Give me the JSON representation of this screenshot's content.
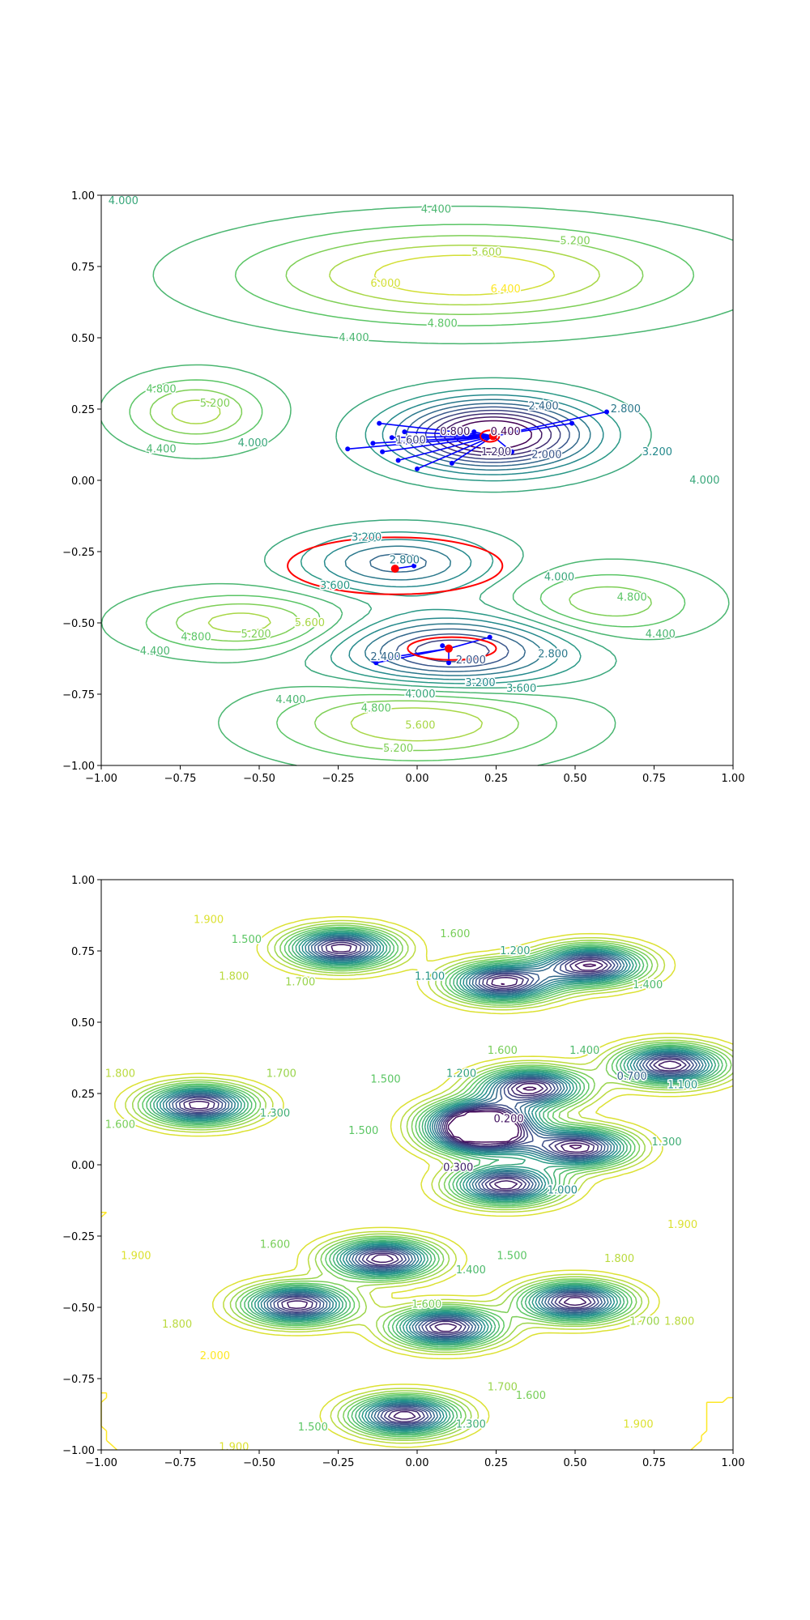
{
  "chart_data": [
    {
      "type": "contour",
      "panel": "top",
      "xlim": [
        -1,
        1
      ],
      "ylim": [
        -1,
        1
      ],
      "x_ticks": [
        "−1.00",
        "−0.75",
        "−0.50",
        "−0.25",
        "0.00",
        "0.25",
        "0.50",
        "0.75",
        "1.00"
      ],
      "y_ticks": [
        "−1.00",
        "−0.75",
        "−0.50",
        "−0.25",
        "0.00",
        "0.25",
        "0.50",
        "0.75",
        "1.00"
      ],
      "title": "",
      "xlabel": "",
      "ylabel": "",
      "grid": false,
      "colormap": "viridis",
      "contour_levels": [
        0.4,
        0.8,
        1.2,
        1.6,
        2.0,
        2.4,
        2.8,
        3.2,
        3.6,
        4.0,
        4.4,
        4.8,
        5.2,
        5.6,
        6.0,
        6.4
      ],
      "contour_labels": [
        {
          "text": "4.000",
          "x": -0.93,
          "y": 0.98
        },
        {
          "text": "4.400",
          "x": 0.06,
          "y": 0.95
        },
        {
          "text": "5.200",
          "x": 0.5,
          "y": 0.84
        },
        {
          "text": "5.600",
          "x": 0.22,
          "y": 0.8
        },
        {
          "text": "6.000",
          "x": -0.1,
          "y": 0.69
        },
        {
          "text": "6.400",
          "x": 0.28,
          "y": 0.67
        },
        {
          "text": "4.800",
          "x": 0.08,
          "y": 0.55
        },
        {
          "text": "4.400",
          "x": -0.2,
          "y": 0.5
        },
        {
          "text": "4.800",
          "x": -0.81,
          "y": 0.32
        },
        {
          "text": "5.200",
          "x": -0.64,
          "y": 0.27
        },
        {
          "text": "4.400",
          "x": -0.81,
          "y": 0.11
        },
        {
          "text": "4.000",
          "x": -0.52,
          "y": 0.13
        },
        {
          "text": "2.400",
          "x": 0.4,
          "y": 0.26
        },
        {
          "text": "2.800",
          "x": 0.66,
          "y": 0.25
        },
        {
          "text": "0.400",
          "x": 0.28,
          "y": 0.17
        },
        {
          "text": "0.800",
          "x": 0.12,
          "y": 0.17
        },
        {
          "text": "1.200",
          "x": 0.25,
          "y": 0.1
        },
        {
          "text": "1.600",
          "x": -0.02,
          "y": 0.14
        },
        {
          "text": "2.000",
          "x": 0.41,
          "y": 0.09
        },
        {
          "text": "3.200",
          "x": 0.76,
          "y": 0.1
        },
        {
          "text": "4.000",
          "x": 0.91,
          "y": 0.0
        },
        {
          "text": "3.200",
          "x": -0.16,
          "y": -0.2
        },
        {
          "text": "2.800",
          "x": -0.04,
          "y": -0.28
        },
        {
          "text": "3.600",
          "x": -0.26,
          "y": -0.37
        },
        {
          "text": "4.000",
          "x": 0.45,
          "y": -0.34
        },
        {
          "text": "4.800",
          "x": 0.68,
          "y": -0.41
        },
        {
          "text": "4.400",
          "x": 0.77,
          "y": -0.54
        },
        {
          "text": "5.600",
          "x": -0.34,
          "y": -0.5
        },
        {
          "text": "5.200",
          "x": -0.51,
          "y": -0.54
        },
        {
          "text": "4.800",
          "x": -0.7,
          "y": -0.55
        },
        {
          "text": "4.400",
          "x": -0.83,
          "y": -0.6
        },
        {
          "text": "2.400",
          "x": -0.1,
          "y": -0.62
        },
        {
          "text": "2.000",
          "x": 0.17,
          "y": -0.63
        },
        {
          "text": "2.800",
          "x": 0.43,
          "y": -0.61
        },
        {
          "text": "3.200",
          "x": 0.2,
          "y": -0.71
        },
        {
          "text": "3.600",
          "x": 0.33,
          "y": -0.73
        },
        {
          "text": "4.000",
          "x": 0.01,
          "y": -0.75
        },
        {
          "text": "4.400",
          "x": -0.4,
          "y": -0.77
        },
        {
          "text": "4.800",
          "x": -0.13,
          "y": -0.8
        },
        {
          "text": "5.600",
          "x": 0.01,
          "y": -0.86
        },
        {
          "text": "5.200",
          "x": -0.06,
          "y": -0.94
        }
      ],
      "overlay": {
        "red_circles": [
          {
            "cx": 0.23,
            "cy": 0.155,
            "rx": 0.03,
            "ry": 0.02
          },
          {
            "cx": -0.07,
            "cy": -0.3,
            "rx": 0.34,
            "ry": 0.1
          },
          {
            "cx": 0.11,
            "cy": -0.59,
            "rx": 0.14,
            "ry": 0.04
          }
        ],
        "red_points": [
          {
            "x": 0.24,
            "y": 0.155
          },
          {
            "x": -0.07,
            "y": -0.31
          },
          {
            "x": 0.1,
            "y": -0.59
          }
        ],
        "blue_paths": [
          [
            [
              -0.12,
              0.2
            ],
            [
              0.24,
              0.155
            ]
          ],
          [
            [
              -0.14,
              0.13
            ],
            [
              0.24,
              0.155
            ]
          ],
          [
            [
              -0.22,
              0.11
            ],
            [
              0.24,
              0.155
            ]
          ],
          [
            [
              -0.11,
              0.1
            ],
            [
              0.24,
              0.155
            ]
          ],
          [
            [
              -0.06,
              0.07
            ],
            [
              0.24,
              0.155
            ]
          ],
          [
            [
              0.0,
              0.04
            ],
            [
              0.24,
              0.155
            ]
          ],
          [
            [
              0.11,
              0.06
            ],
            [
              0.24,
              0.155
            ]
          ],
          [
            [
              0.3,
              0.1
            ],
            [
              0.24,
              0.155
            ]
          ],
          [
            [
              0.49,
              0.2
            ],
            [
              0.24,
              0.155
            ]
          ],
          [
            [
              0.6,
              0.24
            ],
            [
              0.24,
              0.155
            ]
          ],
          [
            [
              0.18,
              0.17
            ],
            [
              0.24,
              0.155
            ]
          ],
          [
            [
              0.08,
              0.16
            ],
            [
              0.24,
              0.155
            ]
          ],
          [
            [
              -0.08,
              0.15
            ],
            [
              0.24,
              0.155
            ]
          ],
          [
            [
              -0.04,
              0.17
            ],
            [
              0.24,
              0.155
            ]
          ],
          [
            [
              -0.01,
              -0.3
            ],
            [
              -0.07,
              -0.31
            ]
          ],
          [
            [
              -0.14,
              -0.63
            ],
            [
              0.1,
              -0.59
            ]
          ],
          [
            [
              -0.13,
              -0.64
            ],
            [
              0.1,
              -0.59
            ]
          ],
          [
            [
              0.23,
              -0.55
            ],
            [
              0.1,
              -0.59
            ]
          ],
          [
            [
              0.08,
              -0.58
            ],
            [
              0.1,
              -0.59
            ]
          ],
          [
            [
              0.1,
              -0.64
            ],
            [
              0.1,
              -0.59
            ]
          ]
        ]
      }
    },
    {
      "type": "contour",
      "panel": "bottom",
      "xlim": [
        -1,
        1
      ],
      "ylim": [
        -1,
        1
      ],
      "x_ticks": [
        "−1.00",
        "−0.75",
        "−0.50",
        "−0.25",
        "0.00",
        "0.25",
        "0.50",
        "0.75",
        "1.00"
      ],
      "y_ticks": [
        "−1.00",
        "−0.75",
        "−0.50",
        "−0.25",
        "0.00",
        "0.25",
        "0.50",
        "0.75",
        "1.00"
      ],
      "title": "",
      "xlabel": "",
      "ylabel": "",
      "grid": false,
      "colormap": "viridis",
      "contour_levels": [
        0.1,
        0.2,
        0.3,
        0.4,
        0.5,
        0.6,
        0.7,
        0.8,
        0.9,
        1.0,
        1.1,
        1.2,
        1.3,
        1.4,
        1.5,
        1.6,
        1.7,
        1.8,
        1.9,
        2.0
      ],
      "contour_labels": [
        {
          "text": "1.900",
          "x": -0.66,
          "y": 0.86
        },
        {
          "text": "1.500",
          "x": -0.54,
          "y": 0.79
        },
        {
          "text": "1.600",
          "x": 0.12,
          "y": 0.81
        },
        {
          "text": "1.200",
          "x": 0.31,
          "y": 0.75
        },
        {
          "text": "1.400",
          "x": 0.73,
          "y": 0.63
        },
        {
          "text": "1.800",
          "x": -0.58,
          "y": 0.66
        },
        {
          "text": "1.700",
          "x": -0.37,
          "y": 0.64
        },
        {
          "text": "1.100",
          "x": 0.04,
          "y": 0.66
        },
        {
          "text": "1.600",
          "x": 0.27,
          "y": 0.4
        },
        {
          "text": "1.400",
          "x": 0.53,
          "y": 0.4
        },
        {
          "text": "1.800",
          "x": -0.94,
          "y": 0.32
        },
        {
          "text": "1.700",
          "x": -0.43,
          "y": 0.32
        },
        {
          "text": "1.500",
          "x": -0.1,
          "y": 0.3
        },
        {
          "text": "1.200",
          "x": 0.14,
          "y": 0.32
        },
        {
          "text": "1.100",
          "x": 0.84,
          "y": 0.28
        },
        {
          "text": "0.700",
          "x": 0.68,
          "y": 0.31
        },
        {
          "text": "1.300",
          "x": -0.45,
          "y": 0.18
        },
        {
          "text": "1.600",
          "x": -0.94,
          "y": 0.14
        },
        {
          "text": "1.500",
          "x": -0.17,
          "y": 0.12
        },
        {
          "text": "0.200",
          "x": 0.29,
          "y": 0.16
        },
        {
          "text": "0.300",
          "x": 0.13,
          "y": -0.01
        },
        {
          "text": "1.300",
          "x": 0.79,
          "y": 0.08
        },
        {
          "text": "1.000",
          "x": 0.46,
          "y": -0.09
        },
        {
          "text": "1.900",
          "x": 0.84,
          "y": -0.21
        },
        {
          "text": "1.900",
          "x": -0.89,
          "y": -0.32
        },
        {
          "text": "1.600",
          "x": -0.45,
          "y": -0.28
        },
        {
          "text": "1.500",
          "x": 0.3,
          "y": -0.32
        },
        {
          "text": "1.400",
          "x": 0.17,
          "y": -0.37
        },
        {
          "text": "1.800",
          "x": 0.64,
          "y": -0.33
        },
        {
          "text": "1.600",
          "x": 0.03,
          "y": -0.49
        },
        {
          "text": "1.800",
          "x": -0.76,
          "y": -0.56
        },
        {
          "text": "1.700",
          "x": 0.72,
          "y": -0.55
        },
        {
          "text": "1.800",
          "x": 0.83,
          "y": -0.55
        },
        {
          "text": "2.000",
          "x": -0.64,
          "y": -0.67
        },
        {
          "text": "1.700",
          "x": 0.27,
          "y": -0.78
        },
        {
          "text": "1.600",
          "x": 0.36,
          "y": -0.81
        },
        {
          "text": "1.500",
          "x": -0.33,
          "y": -0.92
        },
        {
          "text": "1.300",
          "x": 0.17,
          "y": -0.91
        },
        {
          "text": "1.900",
          "x": -0.58,
          "y": -0.99
        },
        {
          "text": "1.900",
          "x": 0.7,
          "y": -0.91
        }
      ],
      "minima": [
        {
          "x": -0.24,
          "y": 0.76
        },
        {
          "x": 0.27,
          "y": 0.64
        },
        {
          "x": 0.55,
          "y": 0.7
        },
        {
          "x": -0.69,
          "y": 0.21
        },
        {
          "x": 0.36,
          "y": 0.27
        },
        {
          "x": 0.8,
          "y": 0.35
        },
        {
          "x": 0.2,
          "y": 0.16
        },
        {
          "x": 0.21,
          "y": 0.1
        },
        {
          "x": 0.51,
          "y": 0.06
        },
        {
          "x": 0.28,
          "y": -0.07
        },
        {
          "x": -0.11,
          "y": -0.33
        },
        {
          "x": -0.38,
          "y": -0.49
        },
        {
          "x": 0.09,
          "y": -0.57
        },
        {
          "x": 0.5,
          "y": -0.48
        },
        {
          "x": -0.04,
          "y": -0.88
        }
      ]
    }
  ]
}
